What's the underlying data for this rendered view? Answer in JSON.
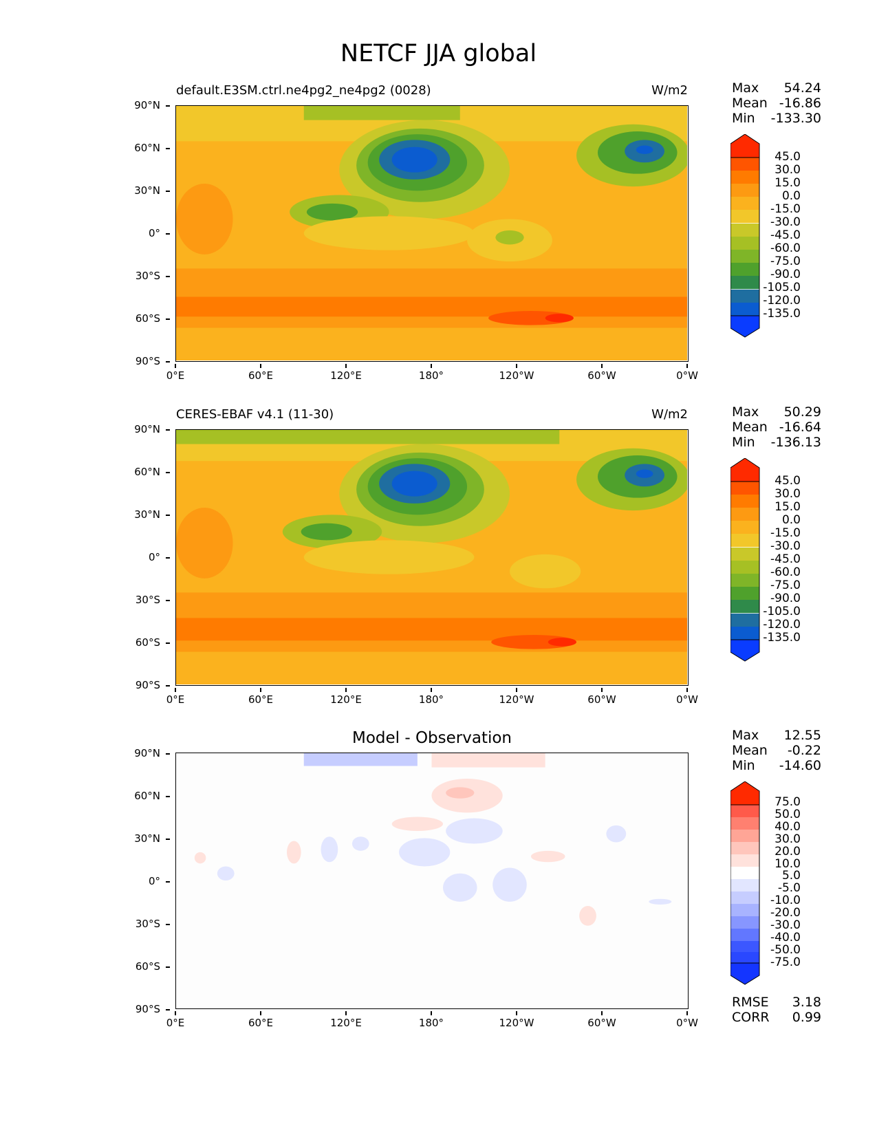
{
  "title": "NETCF JJA global",
  "axes": {
    "y_ticks": [
      "90°N",
      "60°N",
      "30°N",
      "0°",
      "30°S",
      "60°S",
      "90°S"
    ],
    "x_ticks": [
      "0°E",
      "60°E",
      "120°E",
      "180°",
      "120°W",
      "60°W",
      "0°W"
    ]
  },
  "panels": [
    {
      "title_left": "default.E3SM.ctrl.ne4pg2_ne4pg2 (0028)",
      "title_right": "W/m2",
      "stats": [
        {
          "label": "Max",
          "value": "54.24"
        },
        {
          "label": "Mean",
          "value": "-16.86"
        },
        {
          "label": "Min",
          "value": "-133.30"
        }
      ],
      "colorbar_labels": [
        "45.0",
        "30.0",
        "15.0",
        "0.0",
        "-15.0",
        "-30.0",
        "-45.0",
        "-60.0",
        "-75.0",
        "-90.0",
        "-105.0",
        "-120.0",
        "-135.0"
      ]
    },
    {
      "title_left": "CERES-EBAF v4.1 (11-30)",
      "title_right": "W/m2",
      "stats": [
        {
          "label": "Max",
          "value": "50.29"
        },
        {
          "label": "Mean",
          "value": "-16.64"
        },
        {
          "label": "Min",
          "value": "-136.13"
        }
      ],
      "colorbar_labels": [
        "45.0",
        "30.0",
        "15.0",
        "0.0",
        "-15.0",
        "-30.0",
        "-45.0",
        "-60.0",
        "-75.0",
        "-90.0",
        "-105.0",
        "-120.0",
        "-135.0"
      ]
    },
    {
      "title_center": "Model - Observation",
      "stats": [
        {
          "label": "Max",
          "value": "12.55"
        },
        {
          "label": "Mean",
          "value": "-0.22"
        },
        {
          "label": "Min",
          "value": "-14.60"
        }
      ],
      "colorbar_labels": [
        "75.0",
        "50.0",
        "40.0",
        "30.0",
        "20.0",
        "10.0",
        "5.0",
        "-5.0",
        "-10.0",
        "-20.0",
        "-30.0",
        "-40.0",
        "-50.0",
        "-75.0"
      ],
      "metrics": [
        {
          "label": "RMSE",
          "value": "3.18"
        },
        {
          "label": "CORR",
          "value": "0.99"
        }
      ]
    }
  ],
  "colors": {
    "field_scale": [
      "#ff2a00",
      "#ff5500",
      "#ff7b00",
      "#fd9a12",
      "#fbb21e",
      "#f2c72a",
      "#c9c829",
      "#a6c024",
      "#7fb528",
      "#4fa12c",
      "#2f8a4a",
      "#1f6ea0",
      "#0b5cd0",
      "#0a3cff"
    ],
    "diff_scale": [
      "#ff2a00",
      "#ff5a4a",
      "#ff8070",
      "#ffa596",
      "#ffc6bc",
      "#ffe2dc",
      "#ffffff",
      "#e2e6ff",
      "#c6cdff",
      "#a8b3ff",
      "#8796ff",
      "#6277ff",
      "#3c57ff",
      "#1435ff"
    ]
  }
}
